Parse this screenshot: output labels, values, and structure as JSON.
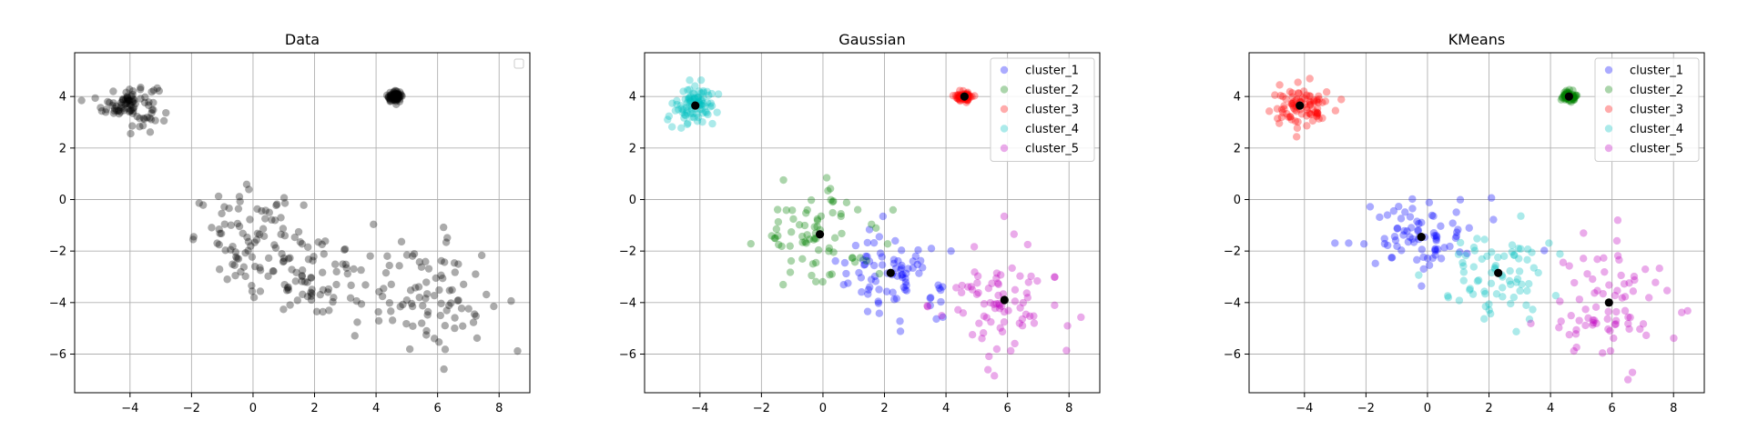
{
  "chart_data": [
    {
      "type": "scatter",
      "title": "Data",
      "xlabel": "",
      "ylabel": "",
      "xlim": [
        -5.8,
        9.0
      ],
      "ylim": [
        -7.5,
        5.7
      ],
      "xticks": [
        -4,
        -2,
        0,
        2,
        4,
        6,
        8
      ],
      "yticks": [
        -6,
        -4,
        -2,
        0,
        2,
        4
      ],
      "xtick_labels": [
        "−4",
        "−2",
        "0",
        "2",
        "4",
        "6",
        "8"
      ],
      "ytick_labels": [
        "−6",
        "−4",
        "−2",
        "0",
        "2",
        "4"
      ],
      "grid": true,
      "legend": {
        "placement": "top-right",
        "entries": []
      },
      "series": [
        {
          "color": "#000000",
          "clusters": [
            {
              "center": [
                -4.0,
                3.7
              ],
              "spread": [
                0.45,
                0.4
              ],
              "count": 90
            },
            {
              "center": [
                4.6,
                4.0
              ],
              "spread": [
                0.12,
                0.1
              ],
              "count": 70
            },
            {
              "center": [
                -0.1,
                -1.5
              ],
              "spread": [
                0.9,
                0.9
              ],
              "count": 75
            },
            {
              "center": [
                2.2,
                -2.9
              ],
              "spread": [
                1.0,
                0.9
              ],
              "count": 85
            },
            {
              "center": [
                5.9,
                -3.9
              ],
              "spread": [
                0.9,
                1.1
              ],
              "count": 80
            }
          ]
        }
      ],
      "centers": []
    },
    {
      "type": "scatter",
      "title": "Gaussian",
      "xlabel": "",
      "ylabel": "",
      "xlim": [
        -5.8,
        9.0
      ],
      "ylim": [
        -7.5,
        5.7
      ],
      "xticks": [
        -4,
        -2,
        0,
        2,
        4,
        6,
        8
      ],
      "yticks": [
        -6,
        -4,
        -2,
        0,
        2,
        4
      ],
      "xtick_labels": [
        "−4",
        "−2",
        "0",
        "2",
        "4",
        "6",
        "8"
      ],
      "ytick_labels": [
        "−6",
        "−4",
        "−2",
        "0",
        "2",
        "4"
      ],
      "grid": true,
      "legend": {
        "placement": "top-right",
        "entries": [
          "cluster_1",
          "cluster_2",
          "cluster_3",
          "cluster_4",
          "cluster_5"
        ]
      },
      "series": [
        {
          "name": "cluster_1",
          "color": "#0000ff",
          "clusters": [
            {
              "center": [
                2.2,
                -2.85
              ],
              "spread": [
                0.9,
                0.85
              ],
              "count": 85
            }
          ]
        },
        {
          "name": "cluster_2",
          "color": "#008000",
          "clusters": [
            {
              "center": [
                -0.1,
                -1.35
              ],
              "spread": [
                0.9,
                0.9
              ],
              "count": 75
            }
          ]
        },
        {
          "name": "cluster_3",
          "color": "#ff0000",
          "clusters": [
            {
              "center": [
                4.6,
                4.0
              ],
              "spread": [
                0.12,
                0.1
              ],
              "count": 70
            }
          ]
        },
        {
          "name": "cluster_4",
          "color": "#00bfbf",
          "clusters": [
            {
              "center": [
                -4.15,
                3.65
              ],
              "spread": [
                0.45,
                0.4
              ],
              "count": 90
            }
          ]
        },
        {
          "name": "cluster_5",
          "color": "#bf00bf",
          "clusters": [
            {
              "center": [
                5.9,
                -3.9
              ],
              "spread": [
                0.9,
                1.1
              ],
              "count": 80
            }
          ]
        }
      ],
      "centers": [
        [
          2.2,
          -2.85
        ],
        [
          -0.1,
          -1.35
        ],
        [
          4.6,
          4.0
        ],
        [
          -4.15,
          3.65
        ],
        [
          5.9,
          -3.9
        ]
      ]
    },
    {
      "type": "scatter",
      "title": "KMeans",
      "xlabel": "",
      "ylabel": "",
      "xlim": [
        -5.8,
        9.0
      ],
      "ylim": [
        -7.5,
        5.7
      ],
      "xticks": [
        -4,
        -2,
        0,
        2,
        4,
        6,
        8
      ],
      "yticks": [
        -6,
        -4,
        -2,
        0,
        2,
        4
      ],
      "xtick_labels": [
        "−4",
        "−2",
        "0",
        "2",
        "4",
        "6",
        "8"
      ],
      "ytick_labels": [
        "−6",
        "−4",
        "−2",
        "0",
        "2",
        "4"
      ],
      "grid": true,
      "legend": {
        "placement": "top-right",
        "entries": [
          "cluster_1",
          "cluster_2",
          "cluster_3",
          "cluster_4",
          "cluster_5"
        ]
      },
      "series": [
        {
          "name": "cluster_1",
          "color": "#0000ff",
          "clusters": [
            {
              "center": [
                -0.2,
                -1.45
              ],
              "spread": [
                0.9,
                0.85
              ],
              "count": 80
            }
          ]
        },
        {
          "name": "cluster_2",
          "color": "#008000",
          "clusters": [
            {
              "center": [
                4.6,
                4.0
              ],
              "spread": [
                0.12,
                0.1
              ],
              "count": 70
            }
          ]
        },
        {
          "name": "cluster_3",
          "color": "#ff0000",
          "clusters": [
            {
              "center": [
                -4.15,
                3.65
              ],
              "spread": [
                0.45,
                0.4
              ],
              "count": 90
            }
          ]
        },
        {
          "name": "cluster_4",
          "color": "#00bfbf",
          "clusters": [
            {
              "center": [
                2.3,
                -2.85
              ],
              "spread": [
                0.85,
                0.8
              ],
              "count": 75
            }
          ]
        },
        {
          "name": "cluster_5",
          "color": "#bf00bf",
          "clusters": [
            {
              "center": [
                5.9,
                -4.0
              ],
              "spread": [
                0.9,
                1.1
              ],
              "count": 80
            }
          ]
        }
      ],
      "centers": [
        [
          -0.2,
          -1.45
        ],
        [
          4.6,
          4.0
        ],
        [
          -4.15,
          3.65
        ],
        [
          2.3,
          -2.85
        ],
        [
          5.9,
          -4.0
        ]
      ]
    }
  ]
}
